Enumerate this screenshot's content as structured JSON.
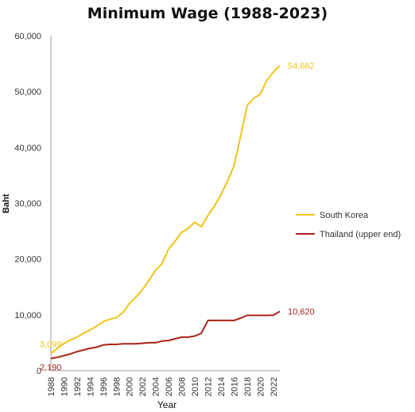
{
  "chart_data": {
    "type": "line",
    "title": "Minimum Wage (1988-2023)",
    "xlabel": "Year",
    "ylabel": "Baht",
    "ylim": [
      0,
      60000
    ],
    "xlim": [
      1988,
      2023
    ],
    "y_ticks": [
      0,
      10000,
      20000,
      30000,
      40000,
      50000,
      60000
    ],
    "y_tick_labels": [
      "0",
      "10,000",
      "20,000",
      "30,000",
      "40,000",
      "50,000",
      "60,000"
    ],
    "x_ticks": [
      1988,
      1990,
      1992,
      1994,
      1996,
      1998,
      2000,
      2002,
      2004,
      2006,
      2008,
      2010,
      2012,
      2014,
      2016,
      2018,
      2020,
      2022
    ],
    "x_tick_labels": [
      "1988",
      "1990",
      "1992",
      "1994",
      "1996",
      "1998",
      "2000",
      "2002",
      "2004",
      "2006",
      "2008",
      "2010",
      "2012",
      "2014",
      "2016",
      "2018",
      "2020",
      "2022"
    ],
    "grid": false,
    "legend_position": "right",
    "series": [
      {
        "name": "South Korea",
        "color": "#f2c318",
        "x": [
          1988,
          1989,
          1990,
          1991,
          1992,
          1993,
          1994,
          1995,
          1996,
          1997,
          1998,
          1999,
          2000,
          2001,
          2002,
          2003,
          2004,
          2005,
          2006,
          2007,
          2008,
          2009,
          2010,
          2011,
          2012,
          2013,
          2014,
          2015,
          2016,
          2017,
          2018,
          2019,
          2020,
          2021,
          2022,
          2023
        ],
        "values": [
          3099,
          4000,
          4900,
          5500,
          6000,
          6700,
          7300,
          8000,
          8800,
          9200,
          9500,
          10400,
          12000,
          13200,
          14500,
          16200,
          18000,
          19200,
          21800,
          23200,
          24800,
          25500,
          26600,
          25800,
          27800,
          29500,
          31500,
          34000,
          36700,
          42000,
          47500,
          48800,
          49500,
          52000,
          53500,
          54662
        ],
        "end_label": "54,662",
        "start_label": "3,099"
      },
      {
        "name": "Thailand (upper end)",
        "color": "#a92418",
        "x": [
          1988,
          1989,
          1990,
          1991,
          1992,
          1993,
          1994,
          1995,
          1996,
          1997,
          1998,
          1999,
          2000,
          2001,
          2002,
          2003,
          2004,
          2005,
          2006,
          2007,
          2008,
          2009,
          2010,
          2011,
          2012,
          2013,
          2014,
          2015,
          2016,
          2017,
          2018,
          2019,
          2020,
          2021,
          2022,
          2023
        ],
        "values": [
          2190,
          2400,
          2700,
          3000,
          3400,
          3700,
          4000,
          4200,
          4600,
          4700,
          4700,
          4800,
          4800,
          4800,
          4900,
          5000,
          5000,
          5300,
          5400,
          5700,
          6000,
          6000,
          6200,
          6700,
          9000,
          9000,
          9000,
          9000,
          9000,
          9400,
          9900,
          9900,
          9900,
          9900,
          9950,
          10620
        ],
        "end_label": "10,620",
        "start_label": "2,190"
      }
    ]
  }
}
